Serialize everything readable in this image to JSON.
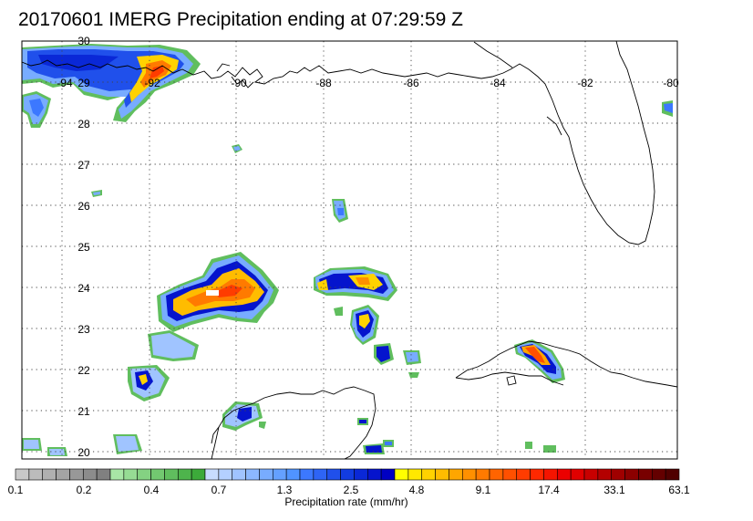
{
  "title": "20170601 IMERG Precipitation ending at 07:29:59 Z",
  "map": {
    "longitude_labels": [
      "-94",
      "-92",
      "-90",
      "-88",
      "-86",
      "-84",
      "-82",
      "-80"
    ],
    "latitude_labels": [
      "30",
      "29",
      "28",
      "27",
      "26",
      "25",
      "24",
      "23",
      "22",
      "21",
      "20"
    ],
    "lon_range": [
      -95,
      -80
    ],
    "lat_range": [
      19.8,
      30
    ],
    "gridlines": "dotted",
    "features": [
      "US Gulf coast",
      "Florida peninsula",
      "Yucatan peninsula",
      "Cuba"
    ]
  },
  "colorbar": {
    "label": "Precipitation rate (mm/hr)",
    "tick_labels": [
      "0.1",
      "0.2",
      "0.4",
      "0.7",
      "1.3",
      "2.5",
      "4.8",
      "9.1",
      "17.4",
      "33.1",
      "63.1"
    ],
    "segment_colors": [
      "#c8c8c8",
      "#bcbcbc",
      "#b0b0b0",
      "#a4a4a4",
      "#989898",
      "#8c8c8c",
      "#808080",
      "#a8e6a6",
      "#96dc94",
      "#84d282",
      "#72c870",
      "#60be5e",
      "#4eb44c",
      "#3caa3a",
      "#c8dcff",
      "#b4d0ff",
      "#a0c4ff",
      "#8cb8ff",
      "#78acff",
      "#64a0ff",
      "#5094ff",
      "#3c78ff",
      "#2e64f5",
      "#2050eb",
      "#123ce1",
      "#0a28d7",
      "#0514cd",
      "#0000c3",
      "#ffff00",
      "#ffe800",
      "#ffd200",
      "#ffbc00",
      "#ffa600",
      "#ff9000",
      "#ff7a00",
      "#ff6400",
      "#ff5000",
      "#ff3c00",
      "#ff2800",
      "#f51400",
      "#eb0000",
      "#e10000",
      "#c80000",
      "#b40000",
      "#a00000",
      "#8c0000",
      "#780000",
      "#640000",
      "#500000"
    ]
  }
}
